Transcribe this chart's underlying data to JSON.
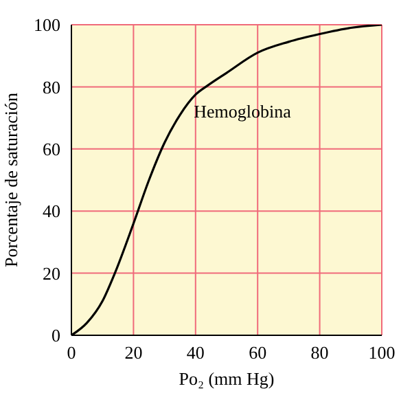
{
  "chart_data": {
    "type": "line",
    "xlabel": "Po₂ (mm Hg)",
    "ylabel": "Porcentaje de saturación",
    "x": [
      0,
      5,
      10,
      14,
      20,
      25,
      30,
      35,
      40,
      44,
      50,
      60,
      70,
      80,
      90,
      100
    ],
    "series": [
      {
        "name": "Hemoglobina",
        "color": "#000000",
        "values": [
          0,
          4,
          11,
          20,
          36,
          50,
          62,
          71,
          77.5,
          80.5,
          84.5,
          91,
          94.5,
          97,
          99,
          100
        ]
      }
    ],
    "xlim": [
      0,
      100
    ],
    "ylim": [
      0,
      100
    ],
    "xticks": [
      0,
      20,
      40,
      60,
      80,
      100
    ],
    "yticks": [
      0,
      20,
      40,
      60,
      80,
      100
    ],
    "grid": true,
    "marker": "none",
    "line_style": "solid"
  }
}
